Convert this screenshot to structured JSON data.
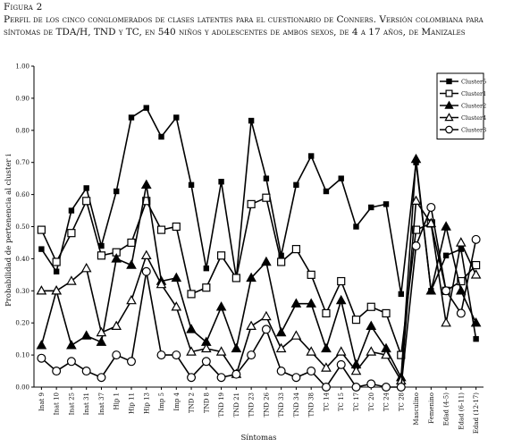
{
  "figure": {
    "label": "Figura 2",
    "caption": "Perfil de los cinco conglomerados de clases latentes para el cuestionario de Conners. Versión colombiana para síntomas de TDA/H, TND y TC, en 540 niños y adolescentes de ambos sexos, de 4 a 17 años, de Manizales"
  },
  "chart_data": {
    "type": "line",
    "title": "",
    "xlabel": "Síntomas",
    "ylabel": "Probabilidad de pertenencia al cluster i",
    "ylim": [
      0,
      1
    ],
    "yticks": [
      "0.00",
      "0.10",
      "0.20",
      "0.30",
      "0.40",
      "0.50",
      "0.60",
      "0.70",
      "0.80",
      "0.90",
      "1.00"
    ],
    "grid": false,
    "legend_position": "top-right",
    "categories": [
      "Inat 9",
      "Inat 10",
      "Inat 25",
      "Inat 31",
      "Inat 37",
      "Hip 1",
      "Hip 11",
      "Hip 13",
      "Imp 5",
      "Imp 4",
      "TND 2",
      "TND 8",
      "TND 19",
      "TND 21",
      "TND 23",
      "TND 26",
      "TND 33",
      "TND 34",
      "TND 38",
      "TC 14",
      "TC 15",
      "TC 17",
      "TC 20",
      "TC 24",
      "TC 28",
      "Masculino",
      "Femenino",
      "Edad (4-5)",
      "Edad (6-11)",
      "Edad (12-17)"
    ],
    "series": [
      {
        "name": "Cluster5",
        "marker": "filled-square",
        "values": [
          0.43,
          0.36,
          0.55,
          0.62,
          0.44,
          0.61,
          0.84,
          0.87,
          0.78,
          0.84,
          0.63,
          0.37,
          0.64,
          0.34,
          0.83,
          0.65,
          0.41,
          0.63,
          0.72,
          0.61,
          0.65,
          0.5,
          0.56,
          0.57,
          0.29,
          0.7,
          0.3,
          0.41,
          0.43,
          0.15
        ]
      },
      {
        "name": "Cluster1",
        "marker": "open-square",
        "values": [
          0.49,
          0.39,
          0.48,
          0.58,
          0.41,
          0.42,
          0.45,
          0.58,
          0.49,
          0.5,
          0.29,
          0.31,
          0.41,
          0.34,
          0.57,
          0.59,
          0.39,
          0.43,
          0.35,
          0.23,
          0.33,
          0.21,
          0.25,
          0.23,
          0.1,
          0.49,
          0.51,
          0.3,
          0.33,
          0.38
        ]
      },
      {
        "name": "Cluster2",
        "marker": "filled-triangle",
        "values": [
          0.13,
          0.3,
          0.13,
          0.16,
          0.14,
          0.4,
          0.38,
          0.63,
          0.33,
          0.34,
          0.18,
          0.14,
          0.25,
          0.12,
          0.34,
          0.39,
          0.17,
          0.26,
          0.26,
          0.12,
          0.27,
          0.07,
          0.19,
          0.12,
          0.03,
          0.71,
          0.3,
          0.5,
          0.3,
          0.2
        ]
      },
      {
        "name": "Cluster4",
        "marker": "open-triangle",
        "values": [
          0.3,
          0.3,
          0.33,
          0.37,
          0.17,
          0.19,
          0.27,
          0.41,
          0.32,
          0.25,
          0.11,
          0.12,
          0.11,
          0.04,
          0.19,
          0.22,
          0.12,
          0.16,
          0.11,
          0.06,
          0.11,
          0.05,
          0.11,
          0.1,
          0.02,
          0.58,
          0.51,
          0.2,
          0.45,
          0.35
        ]
      },
      {
        "name": "Cluster3",
        "marker": "open-circle",
        "values": [
          0.09,
          0.05,
          0.08,
          0.05,
          0.03,
          0.1,
          0.08,
          0.36,
          0.1,
          0.1,
          0.03,
          0.08,
          0.03,
          0.04,
          0.1,
          0.18,
          0.05,
          0.03,
          0.05,
          0.0,
          0.07,
          0.0,
          0.01,
          0.0,
          0.0,
          0.44,
          0.56,
          0.3,
          0.23,
          0.46
        ]
      }
    ]
  }
}
